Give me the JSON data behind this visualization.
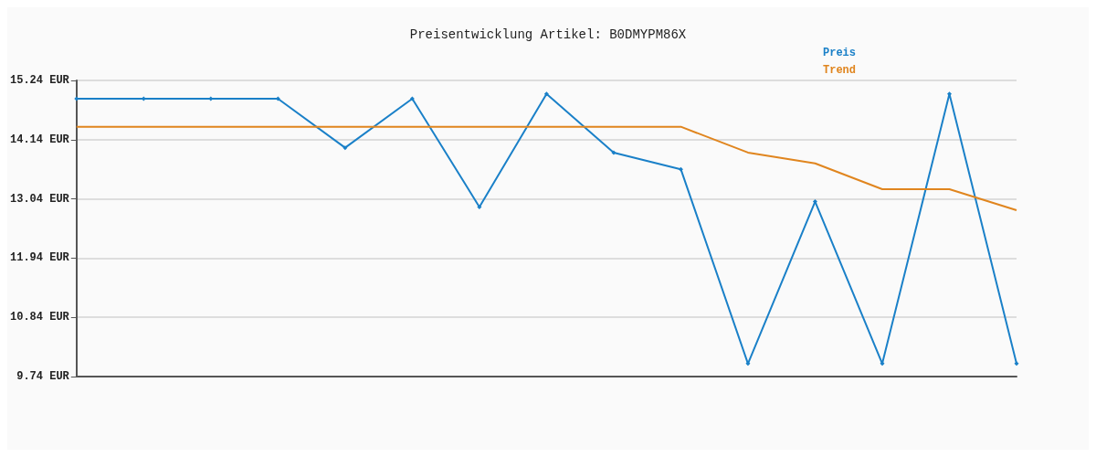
{
  "chart_data": {
    "type": "line",
    "title": "Preisentwicklung Artikel: B0DMYPM86X",
    "categories": [
      null,
      null,
      null,
      null,
      null,
      null,
      null,
      null,
      null,
      null,
      null,
      null,
      null,
      null,
      null
    ],
    "series": [
      {
        "name": "Preis",
        "color": "#1a80c8",
        "marker": "diamond",
        "values": [
          14.9,
          14.9,
          14.9,
          14.9,
          13.99,
          14.9,
          12.89,
          14.99,
          13.9,
          13.59,
          9.98,
          12.99,
          9.98,
          14.99,
          9.98
        ]
      },
      {
        "name": "Trend",
        "color": "#e0851e",
        "marker": "none",
        "values": [
          14.38,
          14.38,
          14.38,
          14.38,
          14.38,
          14.38,
          14.38,
          14.38,
          14.38,
          14.38,
          13.9,
          13.7,
          13.22,
          13.22,
          12.83
        ]
      }
    ],
    "ylim": [
      9.74,
      15.24
    ],
    "yticks": [
      {
        "value": 9.74,
        "label": "9.74 EUR"
      },
      {
        "value": 10.84,
        "label": "10.84 EUR"
      },
      {
        "value": 11.94,
        "label": "11.94 EUR"
      },
      {
        "value": 13.04,
        "label": "13.04 EUR"
      },
      {
        "value": 14.14,
        "label": "14.14 EUR"
      },
      {
        "value": 15.24,
        "label": "15.24 EUR"
      }
    ],
    "grid": "y",
    "legend": "top right",
    "line_style": "solid"
  }
}
